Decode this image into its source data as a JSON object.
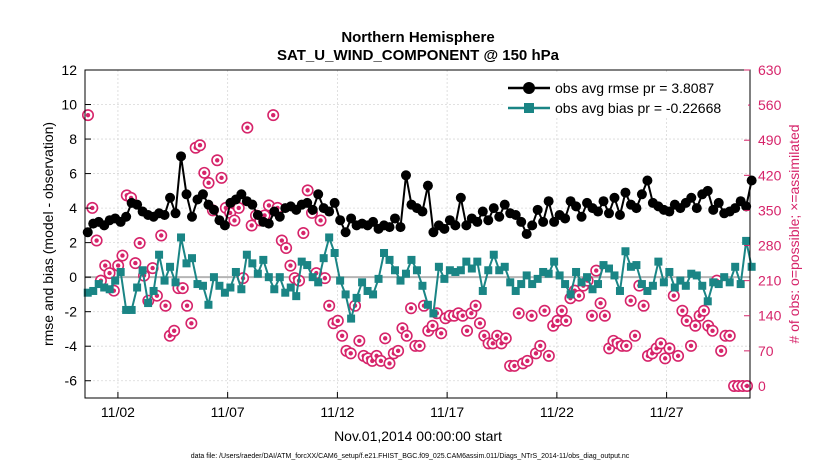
{
  "chart_data": {
    "type": "line",
    "title": "Northern Hemisphere",
    "subtitle": "SAT_U_WIND_COMPONENT @ 150 hPa",
    "xlabel": "Nov.01,2014 00:00:00 start",
    "ylabel": "rmse and bias (model - observation)",
    "ylabel_right": "# of obs: o=possible; ×=assimilated",
    "footnote": "data file: /Users/raeder/DAI/ATM_forcXX/CAM6_setup/f.e21.FHIST_BGC.f09_025.CAM6assim.011/Diags_NTrS_2014-11/obs_diag_output.nc",
    "xlim": [
      0.5,
      30.8
    ],
    "ylim": [
      -7,
      12
    ],
    "ylim_right": [
      -24,
      630
    ],
    "yticks": [
      -6,
      -4,
      -2,
      0,
      2,
      4,
      6,
      8,
      10,
      12
    ],
    "yticks_right": [
      0,
      70,
      140,
      210,
      280,
      350,
      420,
      490,
      560,
      630
    ],
    "xticks": [
      {
        "value": 2,
        "label": "11/02"
      },
      {
        "value": 7,
        "label": "11/07"
      },
      {
        "value": 12,
        "label": "11/12"
      },
      {
        "value": 17,
        "label": "11/17"
      },
      {
        "value": 22,
        "label": "11/22"
      },
      {
        "value": 27,
        "label": "11/27"
      }
    ],
    "grid": true,
    "legend_position": "top-right",
    "x_step_days": 0.25,
    "x_start": 0.625,
    "series": [
      {
        "name": "obs avg rmse pr = 3.8087",
        "color": "#000000",
        "marker": "circle",
        "values": [
          2.6,
          3.1,
          3.2,
          3.0,
          3.3,
          3.4,
          3.2,
          3.5,
          4.3,
          4.2,
          3.8,
          3.6,
          3.5,
          3.7,
          3.6,
          4.6,
          3.7,
          7.0,
          4.8,
          3.5,
          4.5,
          4.8,
          4.2,
          3.9,
          3.3,
          3.0,
          4.3,
          4.5,
          4.8,
          4.4,
          4.2,
          3.6,
          3.2,
          3.1,
          3.8,
          3.5,
          4.0,
          4.1,
          3.9,
          4.2,
          4.3,
          3.9,
          4.8,
          4.0,
          3.8,
          4.3,
          3.3,
          2.6,
          3.4,
          3.0,
          3.1,
          3.0,
          3.2,
          2.8,
          3.0,
          2.9,
          3.4,
          2.9,
          5.9,
          4.2,
          4.0,
          3.8,
          5.3,
          2.6,
          3.0,
          2.8,
          3.3,
          3.0,
          4.6,
          3.0,
          3.4,
          3.2,
          3.8,
          3.3,
          4.0,
          3.5,
          4.2,
          3.7,
          3.6,
          3.2,
          2.5,
          3.0,
          3.9,
          3.2,
          4.4,
          3.2,
          3.6,
          3.4,
          4.4,
          4.1,
          3.5,
          4.3,
          4.0,
          3.8,
          4.4,
          3.7,
          4.6,
          3.6,
          4.9,
          4.2,
          4.0,
          4.8,
          5.6,
          4.3,
          4.1,
          3.9,
          3.8,
          4.2,
          4.0,
          4.3,
          4.6,
          4.0,
          4.8,
          5.0,
          3.9,
          4.3,
          3.7,
          3.8,
          4.0,
          4.4,
          4.1,
          5.6
        ],
        "y_axis": "left"
      },
      {
        "name": "obs avg bias pr = -0.22668",
        "color": "#1a8585",
        "marker": "square",
        "values": [
          -0.9,
          -0.8,
          -0.4,
          -0.6,
          -0.7,
          -0.2,
          0.3,
          -1.9,
          -1.9,
          -0.6,
          0.4,
          -1.5,
          -0.8,
          1.3,
          -0.2,
          0.6,
          -0.3,
          2.3,
          0.8,
          1.1,
          -0.4,
          -0.5,
          -1.6,
          0.0,
          -0.5,
          -0.9,
          -0.6,
          0.3,
          -0.7,
          1.3,
          0.8,
          0.2,
          1.0,
          0.0,
          -0.7,
          0.0,
          -0.9,
          -0.6,
          -1.1,
          0.9,
          0.7,
          0.0,
          -0.3,
          1.1,
          2.3,
          1.4,
          -0.2,
          -1.0,
          -2.4,
          -1.2,
          -0.3,
          -0.8,
          -1.0,
          -0.1,
          1.4,
          1.0,
          0.4,
          -0.2,
          0.2,
          1.0,
          0.4,
          -0.5,
          -1.6,
          -2.1,
          0.6,
          -0.1,
          0.4,
          0.3,
          0.4,
          0.9,
          0.5,
          0.9,
          -0.8,
          0.4,
          1.3,
          0.4,
          0.6,
          -0.3,
          -0.8,
          -0.4,
          0.1,
          -0.4,
          -0.1,
          0.3,
          0.2,
          0.9,
          0.1,
          -0.4,
          -1.0,
          0.3,
          -0.3,
          0.0,
          -0.7,
          -0.4,
          0.7,
          0.5,
          0.1,
          -0.8,
          1.5,
          0.6,
          0.7,
          -0.4,
          -0.8,
          -0.5,
          0.9,
          -0.3,
          0.3,
          -0.6,
          -0.2,
          -0.5,
          0.2,
          0.1,
          -0.5,
          -1.4,
          -0.3,
          -0.4,
          0.0,
          -0.3,
          0.6,
          -0.4,
          2.1,
          0.6
        ],
        "y_axis": "left"
      },
      {
        "name": "# of obs possible",
        "color": "#d6246a",
        "marker": "circle-open",
        "values": [
          540,
          355,
          290,
          210,
          240,
          225,
          190,
          240,
          260,
          380,
          375,
          245,
          285,
          220,
          170,
          235,
          180,
          300,
          160,
          100,
          110,
          195,
          195,
          160,
          125,
          475,
          480,
          425,
          405,
          350,
          450,
          415,
          355,
          345,
          330,
          355,
          215,
          515,
          320,
          340,
          330,
          340,
          360,
          540,
          355,
          290,
          275,
          240,
          215,
          210,
          305,
          390,
          345,
          225,
          330,
          215,
          160,
          125,
          130,
          100,
          70,
          65,
          160,
          90,
          60,
          55,
          50,
          60,
          50,
          95,
          45,
          65,
          70,
          115,
          100,
          155,
          80,
          80,
          160,
          110,
          120,
          145,
          105,
          135,
          140,
          140,
          145,
          140,
          110,
          145,
          160,
          125,
          100,
          85,
          85,
          100,
          85,
          95,
          40,
          40,
          145,
          45,
          50,
          140,
          65,
          80,
          150,
          60,
          120,
          130,
          150,
          130,
          175,
          190,
          180,
          200,
          210,
          140,
          230,
          165,
          140,
          75,
          90,
          85,
          80,
          80,
          170,
          100,
          200,
          160,
          60,
          65,
          75,
          85,
          55,
          75,
          180,
          60,
          150,
          130,
          80,
          120,
          140,
          150,
          120,
          110,
          210,
          70,
          100,
          100,
          0,
          0,
          0,
          0
        ],
        "y_axis": "right"
      }
    ]
  }
}
